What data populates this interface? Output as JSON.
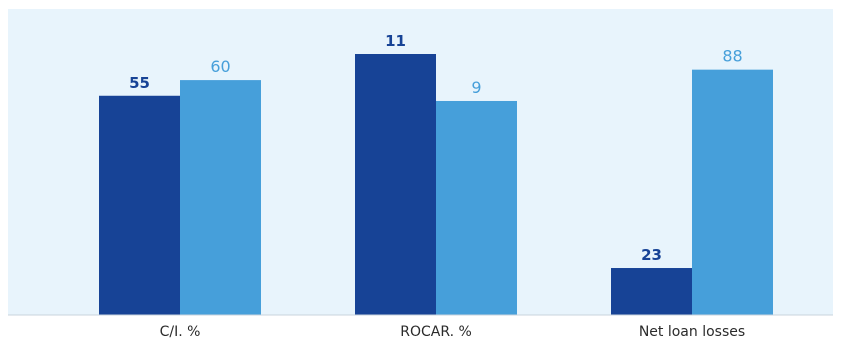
{
  "colors": {
    "plot_background": "#e8f4fc",
    "series_dark": "#174396",
    "series_light": "#469fda",
    "axis_line": "#c9d3dc",
    "label_text": "#2b2b2b"
  },
  "chart_data": {
    "type": "bar",
    "title": "",
    "xlabel": "",
    "ylabel": "",
    "categories": [
      "C/I. %",
      "ROCAR. %",
      "Net loan losses"
    ],
    "series": [
      {
        "color": "#174396",
        "values": [
          55,
          11,
          23
        ],
        "labels": [
          "55",
          "11",
          "23"
        ],
        "bar_fraction": [
          0.84,
          1.0,
          0.18
        ]
      },
      {
        "color": "#469fda",
        "values": [
          60,
          9,
          88
        ],
        "labels": [
          "60",
          "9",
          "88"
        ],
        "bar_fraction": [
          0.9,
          0.82,
          0.94
        ]
      }
    ],
    "grid": false,
    "legend": "none"
  }
}
